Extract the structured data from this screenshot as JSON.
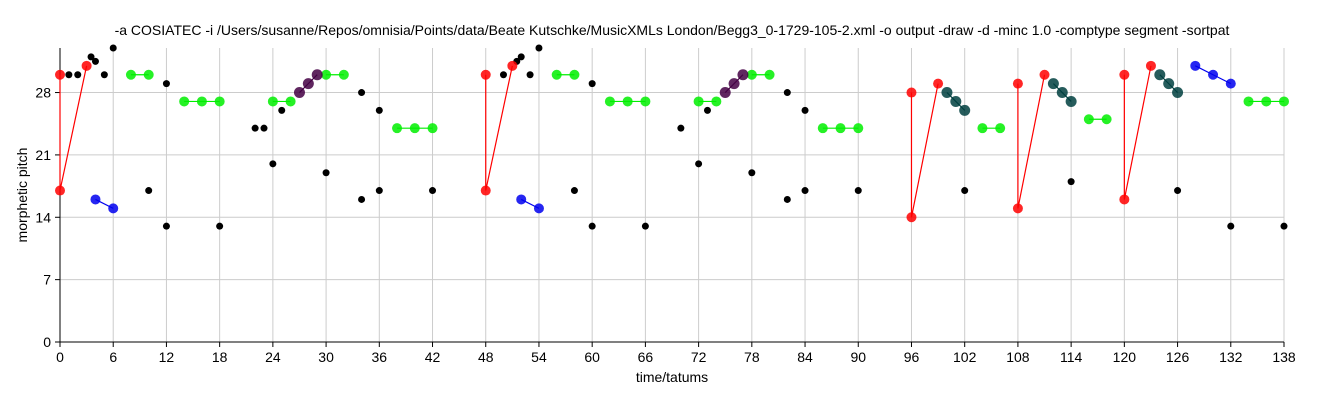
{
  "chart_data": {
    "type": "scatter",
    "title": "-a COSIATEC -i /Users/susanne/Repos/omnisia/Points/data/Beate Kutschke/MusicXMLs London/Begg3_0-1729-105-2.xml -o output -draw -d -minc 1.0 -comptype segment -sortpat",
    "xlabel": "time/tatums",
    "ylabel": "morphetic pitch",
    "xlim": [
      0,
      138
    ],
    "ylim": [
      0,
      33
    ],
    "xticks": [
      0,
      6,
      12,
      18,
      24,
      30,
      36,
      42,
      48,
      54,
      60,
      66,
      72,
      78,
      84,
      90,
      96,
      102,
      108,
      114,
      120,
      126,
      132,
      138
    ],
    "yticks": [
      0,
      7,
      14,
      21,
      28
    ],
    "grid": true,
    "colors": {
      "black": "#000000",
      "red": "#ff0000",
      "green": "#00ee00",
      "blue": "#0000ee",
      "purple": "#440044",
      "teal": "#004040"
    },
    "background_points": [
      [
        1,
        30
      ],
      [
        2,
        30
      ],
      [
        3.5,
        32
      ],
      [
        4,
        31.5
      ],
      [
        5,
        30
      ],
      [
        6,
        33
      ],
      [
        12,
        29
      ],
      [
        12,
        13
      ],
      [
        10,
        17
      ],
      [
        18,
        13
      ],
      [
        22,
        24
      ],
      [
        23,
        24
      ],
      [
        24,
        20
      ],
      [
        25,
        26
      ],
      [
        30,
        19
      ],
      [
        34,
        28
      ],
      [
        34,
        16
      ],
      [
        36,
        26
      ],
      [
        36,
        17
      ],
      [
        42,
        17
      ],
      [
        50,
        30
      ],
      [
        51.5,
        31.5
      ],
      [
        52,
        32
      ],
      [
        53,
        30
      ],
      [
        54,
        33
      ],
      [
        58,
        17
      ],
      [
        60,
        29
      ],
      [
        60,
        13
      ],
      [
        66,
        13
      ],
      [
        70,
        24
      ],
      [
        72,
        20
      ],
      [
        73,
        26
      ],
      [
        78,
        19
      ],
      [
        82,
        28
      ],
      [
        82,
        16
      ],
      [
        84,
        26
      ],
      [
        84,
        17
      ],
      [
        90,
        17
      ],
      [
        102,
        17
      ],
      [
        114,
        18
      ],
      [
        126,
        17
      ],
      [
        132,
        13
      ],
      [
        138,
        13
      ]
    ],
    "patterns": [
      {
        "color": "red",
        "lines": true,
        "points": [
          [
            0,
            30
          ],
          [
            0,
            17
          ],
          [
            3,
            31
          ]
        ]
      },
      {
        "color": "red",
        "lines": true,
        "points": [
          [
            48,
            30
          ],
          [
            48,
            17
          ],
          [
            51,
            31
          ]
        ]
      },
      {
        "color": "red",
        "lines": true,
        "points": [
          [
            96,
            28
          ],
          [
            96,
            14
          ],
          [
            99,
            29
          ]
        ]
      },
      {
        "color": "red",
        "lines": true,
        "points": [
          [
            108,
            29
          ],
          [
            108,
            15
          ],
          [
            111,
            30
          ]
        ]
      },
      {
        "color": "red",
        "lines": true,
        "points": [
          [
            120,
            30
          ],
          [
            120,
            16
          ],
          [
            123,
            31
          ]
        ]
      },
      {
        "color": "blue",
        "lines": true,
        "points": [
          [
            4,
            16
          ],
          [
            6,
            15
          ]
        ]
      },
      {
        "color": "blue",
        "lines": true,
        "points": [
          [
            52,
            16
          ],
          [
            54,
            15
          ]
        ]
      },
      {
        "color": "blue",
        "lines": true,
        "points": [
          [
            128,
            31
          ],
          [
            130,
            30
          ],
          [
            132,
            29
          ]
        ]
      },
      {
        "color": "green",
        "lines": true,
        "points": [
          [
            8,
            30
          ],
          [
            10,
            30
          ]
        ]
      },
      {
        "color": "green",
        "lines": true,
        "points": [
          [
            14,
            27
          ],
          [
            16,
            27
          ],
          [
            18,
            27
          ]
        ]
      },
      {
        "color": "green",
        "lines": true,
        "points": [
          [
            24,
            27
          ],
          [
            26,
            27
          ]
        ]
      },
      {
        "color": "green",
        "lines": true,
        "points": [
          [
            30,
            30
          ],
          [
            32,
            30
          ]
        ]
      },
      {
        "color": "green",
        "lines": true,
        "points": [
          [
            38,
            24
          ],
          [
            40,
            24
          ],
          [
            42,
            24
          ]
        ]
      },
      {
        "color": "green",
        "lines": true,
        "points": [
          [
            56,
            30
          ],
          [
            58,
            30
          ]
        ]
      },
      {
        "color": "green",
        "lines": true,
        "points": [
          [
            62,
            27
          ],
          [
            64,
            27
          ],
          [
            66,
            27
          ]
        ]
      },
      {
        "color": "green",
        "lines": true,
        "points": [
          [
            72,
            27
          ],
          [
            74,
            27
          ]
        ]
      },
      {
        "color": "green",
        "lines": true,
        "points": [
          [
            78,
            30
          ],
          [
            80,
            30
          ]
        ]
      },
      {
        "color": "green",
        "lines": true,
        "points": [
          [
            86,
            24
          ],
          [
            88,
            24
          ],
          [
            90,
            24
          ]
        ]
      },
      {
        "color": "green",
        "lines": true,
        "points": [
          [
            104,
            24
          ],
          [
            106,
            24
          ]
        ]
      },
      {
        "color": "green",
        "lines": true,
        "points": [
          [
            116,
            25
          ],
          [
            118,
            25
          ]
        ]
      },
      {
        "color": "green",
        "lines": true,
        "points": [
          [
            134,
            27
          ],
          [
            136,
            27
          ],
          [
            138,
            27
          ]
        ]
      },
      {
        "color": "purple",
        "lines": true,
        "points": [
          [
            27,
            28
          ],
          [
            28,
            29
          ],
          [
            29,
            30
          ]
        ]
      },
      {
        "color": "purple",
        "lines": true,
        "points": [
          [
            75,
            28
          ],
          [
            76,
            29
          ],
          [
            77,
            30
          ]
        ]
      },
      {
        "color": "teal",
        "lines": true,
        "points": [
          [
            100,
            28
          ],
          [
            101,
            27
          ],
          [
            102,
            26
          ]
        ]
      },
      {
        "color": "teal",
        "lines": true,
        "points": [
          [
            112,
            29
          ],
          [
            113,
            28
          ],
          [
            114,
            27
          ]
        ]
      },
      {
        "color": "teal",
        "lines": true,
        "points": [
          [
            124,
            30
          ],
          [
            125,
            29
          ],
          [
            126,
            28
          ]
        ]
      }
    ]
  }
}
